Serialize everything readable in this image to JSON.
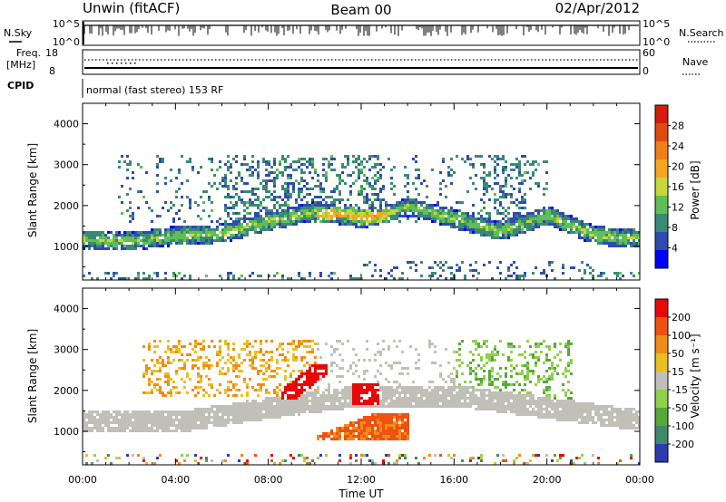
{
  "header": {
    "site": "Unwin (fitACF)",
    "beam": "Beam 00",
    "date": "02/Apr/2012"
  },
  "top_panels": {
    "nsky_label": "N.Sky",
    "nsearch_label": "N.Search",
    "freq_label_1": "Freq.",
    "freq_label_2": "[MHz]",
    "nave_label": "Nave",
    "cpid_label": "CPID",
    "cpid_text": "normal (fast stereo) 153 RF",
    "noise_ticks_left": [
      "10^5",
      "10^0"
    ],
    "noise_ticks_right": [
      "10^5",
      "10^0"
    ],
    "freq_ticks": [
      "18",
      "8"
    ],
    "nave_ticks": [
      "60",
      "0"
    ]
  },
  "chart_data": [
    {
      "type": "heatmap",
      "panel": "power",
      "ylabel": "Slant Range [km]",
      "xlabel": "Time UT",
      "ylim": [
        180,
        4500
      ],
      "xlim": [
        0,
        24
      ],
      "yticks": [
        1000,
        2000,
        3000,
        4000
      ],
      "colorbar_label": "Power [dB]",
      "colorbar_ticks": [
        "4",
        "8",
        "12",
        "16",
        "20",
        "24",
        "28"
      ],
      "colorbar_colors": [
        "#0000ff",
        "#2f4ab0",
        "#3a8a73",
        "#5fbf55",
        "#c8d63c",
        "#f5a623",
        "#f07e1a",
        "#e04a12",
        "#d41c0a"
      ],
      "features": [
        {
          "name": "main echo band",
          "x": [
            0,
            2,
            4,
            6,
            8,
            10,
            12,
            14,
            16,
            18,
            20,
            22,
            24
          ],
          "range_km": [
            1200,
            1150,
            1300,
            1350,
            1650,
            1900,
            1700,
            2000,
            1700,
            1400,
            1800,
            1300,
            1200
          ],
          "power_db": 12
        },
        {
          "name": "patchy far-range echoes",
          "x_range": [
            1.5,
            20
          ],
          "range_km": [
            1700,
            3300
          ],
          "power_db": 6
        },
        {
          "name": "strong intensification",
          "x": [
            10,
            11,
            12,
            13
          ],
          "range_km": [
            1700,
            1900,
            1800,
            1700
          ],
          "power_db": 20
        }
      ]
    },
    {
      "type": "heatmap",
      "panel": "velocity",
      "ylabel": "Slant Range [km]",
      "xlabel": "Time UT",
      "ylim": [
        180,
        4500
      ],
      "xlim": [
        0,
        24
      ],
      "yticks": [
        1000,
        2000,
        3000,
        4000
      ],
      "xticks": [
        "00:00",
        "04:00",
        "08:00",
        "12:00",
        "16:00",
        "20:00",
        "00:00"
      ],
      "colorbar_label": "Velocity [m s⁻¹]",
      "colorbar_ticks": [
        "200",
        "100",
        "50",
        "15",
        "-15",
        "-50",
        "-100",
        "-200"
      ],
      "colorbar_colors": [
        "#2b3cb0",
        "#3f8a6a",
        "#54a93a",
        "#8fd04a",
        "#c0c0b8",
        "#e8c020",
        "#f08c18",
        "#f05010",
        "#e80808"
      ],
      "features": [
        {
          "name": "ground scatter (grey)",
          "x": [
            0,
            4,
            8,
            12,
            16,
            20,
            24
          ],
          "range_km": [
            1250,
            1250,
            1600,
            1900,
            1900,
            1600,
            1300
          ],
          "velocity": 0
        },
        {
          "name": "negative velocity patch",
          "x_range": [
            10,
            14
          ],
          "range_km": [
            800,
            1400
          ],
          "velocity": -150
        },
        {
          "name": "positive velocity region",
          "x_range": [
            16,
            21
          ],
          "range_km": [
            1700,
            3300
          ],
          "velocity": 60
        }
      ]
    }
  ]
}
